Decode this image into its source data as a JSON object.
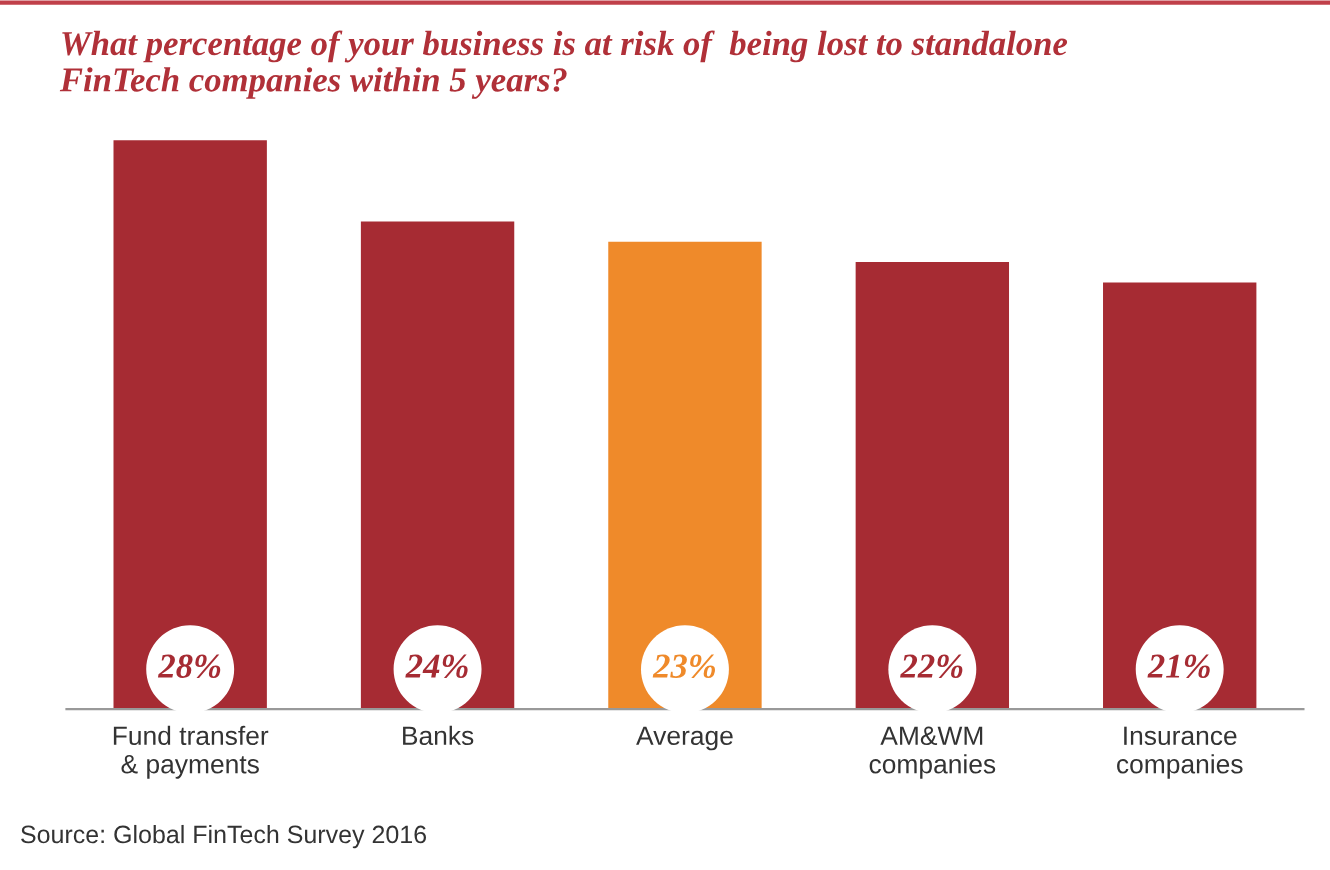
{
  "chart_data": {
    "type": "bar",
    "title": "What percentage of your business is at risk of  being lost to standalone\nFinTech companies within 5 years?",
    "categories": [
      "Fund transfer\n& payments",
      "Banks",
      "Average",
      "AM&WM\ncompanies",
      "Insurance\ncompanies"
    ],
    "values": [
      28,
      24,
      23,
      22,
      21
    ],
    "value_labels": [
      "28%",
      "24%",
      "23%",
      "22%",
      "21%"
    ],
    "colors": [
      "#a62b33",
      "#a62b33",
      "#ef8a2a",
      "#a62b33",
      "#a62b33"
    ],
    "grid": false,
    "legend": false,
    "annotations": [
      "Source: Global FinTech Survey 2016"
    ]
  }
}
